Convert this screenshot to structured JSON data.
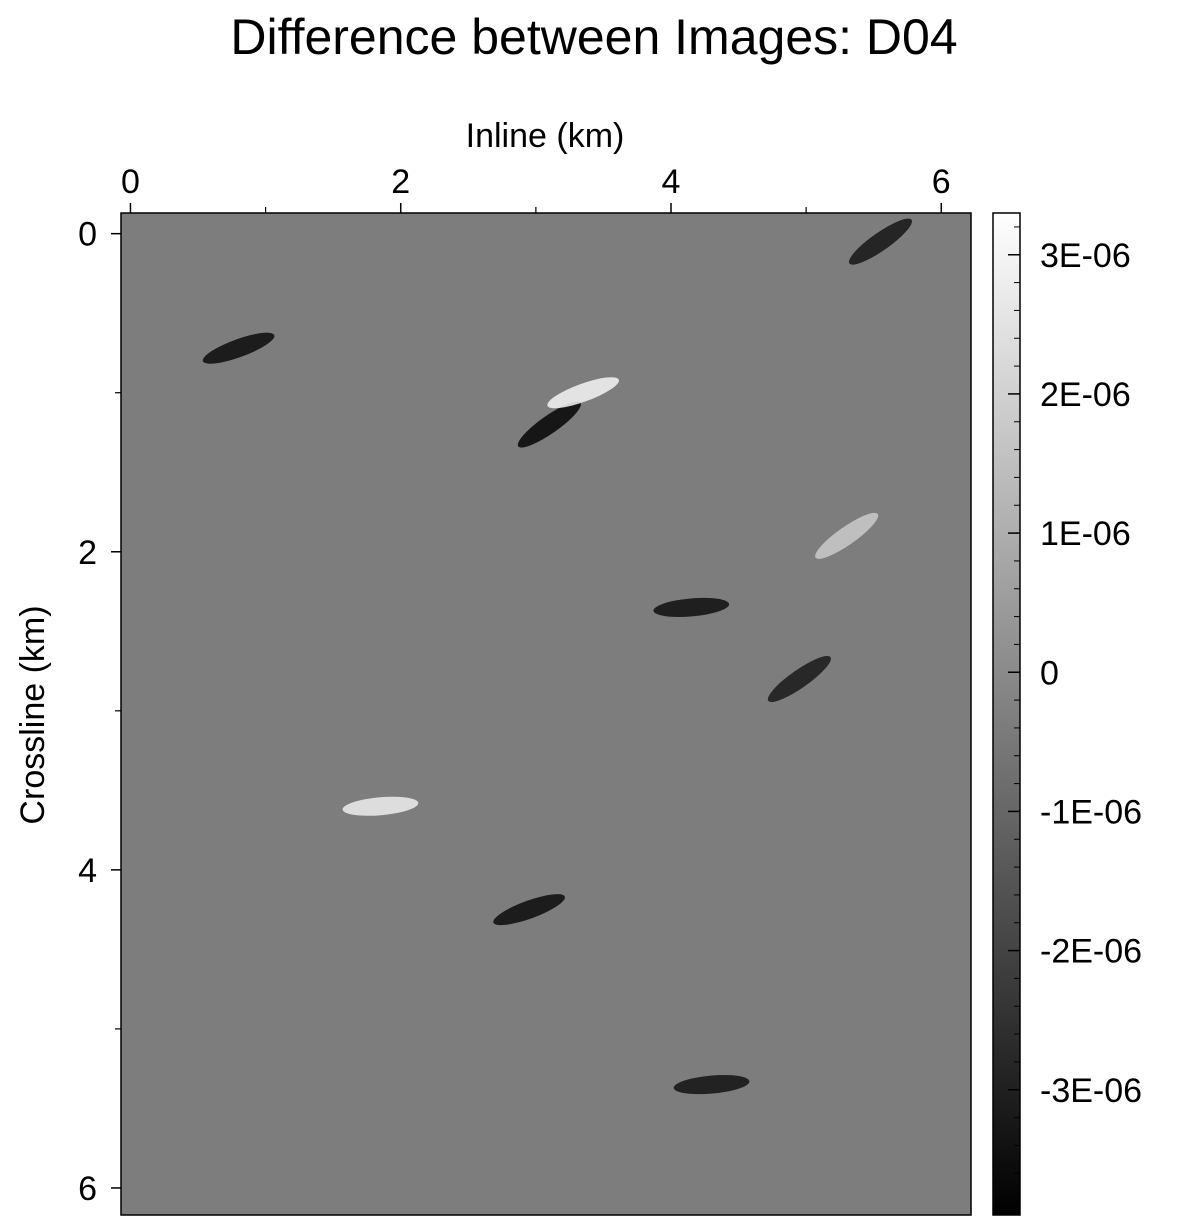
{
  "chart_data": {
    "type": "heatmap",
    "title": "Difference between Images: D04",
    "xlabel": "Inline (km)",
    "ylabel": "Crossline (km)",
    "x_axis_position": "top",
    "xlim": [
      -0.07,
      6.22
    ],
    "ylim": [
      -0.13,
      6.17
    ],
    "y_inverted": true,
    "x_ticks": [
      {
        "value": 0,
        "label": "0"
      },
      {
        "value": 2,
        "label": "2"
      },
      {
        "value": 4,
        "label": "4"
      },
      {
        "value": 6,
        "label": "6"
      }
    ],
    "x_minor_ticks": [
      1,
      3,
      5
    ],
    "y_ticks": [
      {
        "value": 0,
        "label": "0"
      },
      {
        "value": 2,
        "label": "2"
      },
      {
        "value": 4,
        "label": "4"
      },
      {
        "value": 6,
        "label": "6"
      }
    ],
    "y_minor_ticks": [
      1,
      3,
      5
    ],
    "colormap": "grayscale",
    "colormap_colors": [
      "#000000",
      "#ffffff"
    ],
    "colorbar": {
      "range": [
        -3.9e-06,
        3.3e-06
      ],
      "ticks": [
        {
          "value": 3e-06,
          "label": "3E-06"
        },
        {
          "value": 2e-06,
          "label": "2E-06"
        },
        {
          "value": 1e-06,
          "label": "1E-06"
        },
        {
          "value": 0,
          "label": "0"
        },
        {
          "value": -1e-06,
          "label": "-1E-06"
        },
        {
          "value": -2e-06,
          "label": "-2E-06"
        },
        {
          "value": -3e-06,
          "label": "-3E-06"
        }
      ],
      "minor_step": 2e-07
    },
    "notable_features": [
      {
        "x": 3.1,
        "y": 1.2,
        "value": -3.8e-06
      },
      {
        "x": 3.35,
        "y": 1.0,
        "value": 3e-06
      },
      {
        "x": 4.15,
        "y": 2.35,
        "value": -3.5e-06
      },
      {
        "x": 4.95,
        "y": 2.8,
        "value": -3.2e-06
      },
      {
        "x": 2.95,
        "y": 4.25,
        "value": -3.6e-06
      },
      {
        "x": 4.3,
        "y": 5.35,
        "value": -3.4e-06
      },
      {
        "x": 5.55,
        "y": 0.05,
        "value": -3.3e-06
      },
      {
        "x": 0.8,
        "y": 0.72,
        "value": -3.6e-06
      },
      {
        "x": 1.85,
        "y": 3.6,
        "value": 2.8e-06
      },
      {
        "x": 5.3,
        "y": 1.9,
        "value": 1.8e-06
      }
    ]
  }
}
